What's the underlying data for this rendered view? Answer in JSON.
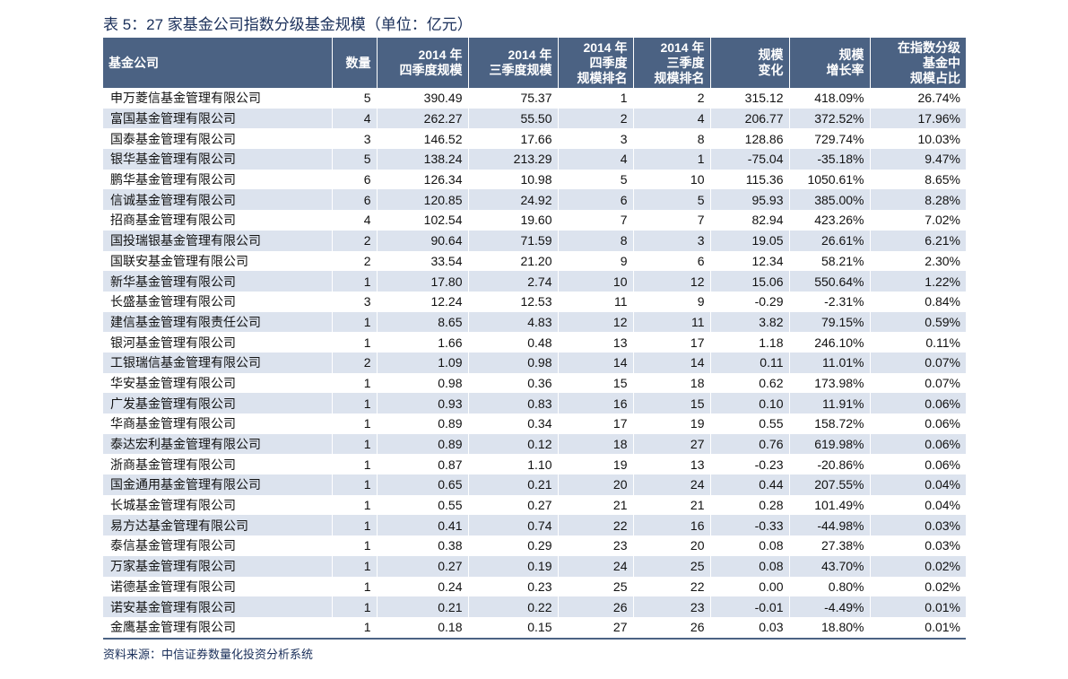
{
  "title": "表 5：27 家基金公司指数分级基金规模（单位：亿元）",
  "table": {
    "header": [
      [
        "基金公司"
      ],
      [
        "数量"
      ],
      [
        "2014 年",
        "四季度规模"
      ],
      [
        "2014 年",
        "三季度规模"
      ],
      [
        "2014 年",
        "四季度",
        "规模排名"
      ],
      [
        "2014 年",
        "三季度",
        "规模排名"
      ],
      [
        "规模",
        "变化"
      ],
      [
        "规模",
        "增长率"
      ],
      [
        "在指数分级",
        "基金中",
        "规模占比"
      ]
    ],
    "rows": [
      [
        "申万菱信基金管理有限公司",
        "5",
        "390.49",
        "75.37",
        "1",
        "2",
        "315.12",
        "418.09%",
        "26.74%"
      ],
      [
        "富国基金管理有限公司",
        "4",
        "262.27",
        "55.50",
        "2",
        "4",
        "206.77",
        "372.52%",
        "17.96%"
      ],
      [
        "国泰基金管理有限公司",
        "3",
        "146.52",
        "17.66",
        "3",
        "8",
        "128.86",
        "729.74%",
        "10.03%"
      ],
      [
        "银华基金管理有限公司",
        "5",
        "138.24",
        "213.29",
        "4",
        "1",
        "-75.04",
        "-35.18%",
        "9.47%"
      ],
      [
        "鹏华基金管理有限公司",
        "6",
        "126.34",
        "10.98",
        "5",
        "10",
        "115.36",
        "1050.61%",
        "8.65%"
      ],
      [
        "信诚基金管理有限公司",
        "6",
        "120.85",
        "24.92",
        "6",
        "5",
        "95.93",
        "385.00%",
        "8.28%"
      ],
      [
        "招商基金管理有限公司",
        "4",
        "102.54",
        "19.60",
        "7",
        "7",
        "82.94",
        "423.26%",
        "7.02%"
      ],
      [
        "国投瑞银基金管理有限公司",
        "2",
        "90.64",
        "71.59",
        "8",
        "3",
        "19.05",
        "26.61%",
        "6.21%"
      ],
      [
        "国联安基金管理有限公司",
        "2",
        "33.54",
        "21.20",
        "9",
        "6",
        "12.34",
        "58.21%",
        "2.30%"
      ],
      [
        "新华基金管理有限公司",
        "1",
        "17.80",
        "2.74",
        "10",
        "12",
        "15.06",
        "550.64%",
        "1.22%"
      ],
      [
        "长盛基金管理有限公司",
        "3",
        "12.24",
        "12.53",
        "11",
        "9",
        "-0.29",
        "-2.31%",
        "0.84%"
      ],
      [
        "建信基金管理有限责任公司",
        "1",
        "8.65",
        "4.83",
        "12",
        "11",
        "3.82",
        "79.15%",
        "0.59%"
      ],
      [
        "银河基金管理有限公司",
        "1",
        "1.66",
        "0.48",
        "13",
        "17",
        "1.18",
        "246.10%",
        "0.11%"
      ],
      [
        "工银瑞信基金管理有限公司",
        "2",
        "1.09",
        "0.98",
        "14",
        "14",
        "0.11",
        "11.01%",
        "0.07%"
      ],
      [
        "华安基金管理有限公司",
        "1",
        "0.98",
        "0.36",
        "15",
        "18",
        "0.62",
        "173.98%",
        "0.07%"
      ],
      [
        "广发基金管理有限公司",
        "1",
        "0.93",
        "0.83",
        "16",
        "15",
        "0.10",
        "11.91%",
        "0.06%"
      ],
      [
        "华商基金管理有限公司",
        "1",
        "0.89",
        "0.34",
        "17",
        "19",
        "0.55",
        "158.72%",
        "0.06%"
      ],
      [
        "泰达宏利基金管理有限公司",
        "1",
        "0.89",
        "0.12",
        "18",
        "27",
        "0.76",
        "619.98%",
        "0.06%"
      ],
      [
        "浙商基金管理有限公司",
        "1",
        "0.87",
        "1.10",
        "19",
        "13",
        "-0.23",
        "-20.86%",
        "0.06%"
      ],
      [
        "国金通用基金管理有限公司",
        "1",
        "0.65",
        "0.21",
        "20",
        "24",
        "0.44",
        "207.55%",
        "0.04%"
      ],
      [
        "长城基金管理有限公司",
        "1",
        "0.55",
        "0.27",
        "21",
        "21",
        "0.28",
        "101.49%",
        "0.04%"
      ],
      [
        "易方达基金管理有限公司",
        "1",
        "0.41",
        "0.74",
        "22",
        "16",
        "-0.33",
        "-44.98%",
        "0.03%"
      ],
      [
        "泰信基金管理有限公司",
        "1",
        "0.38",
        "0.29",
        "23",
        "20",
        "0.08",
        "27.38%",
        "0.03%"
      ],
      [
        "万家基金管理有限公司",
        "1",
        "0.27",
        "0.19",
        "24",
        "25",
        "0.08",
        "43.70%",
        "0.02%"
      ],
      [
        "诺德基金管理有限公司",
        "1",
        "0.24",
        "0.23",
        "25",
        "22",
        "0.00",
        "0.80%",
        "0.02%"
      ],
      [
        "诺安基金管理有限公司",
        "1",
        "0.21",
        "0.22",
        "26",
        "23",
        "-0.01",
        "-4.49%",
        "0.01%"
      ],
      [
        "金鹰基金管理有限公司",
        "1",
        "0.18",
        "0.15",
        "27",
        "26",
        "0.03",
        "18.80%",
        "0.01%"
      ]
    ]
  },
  "source": "资料来源：中信证券数量化投资分析系统"
}
